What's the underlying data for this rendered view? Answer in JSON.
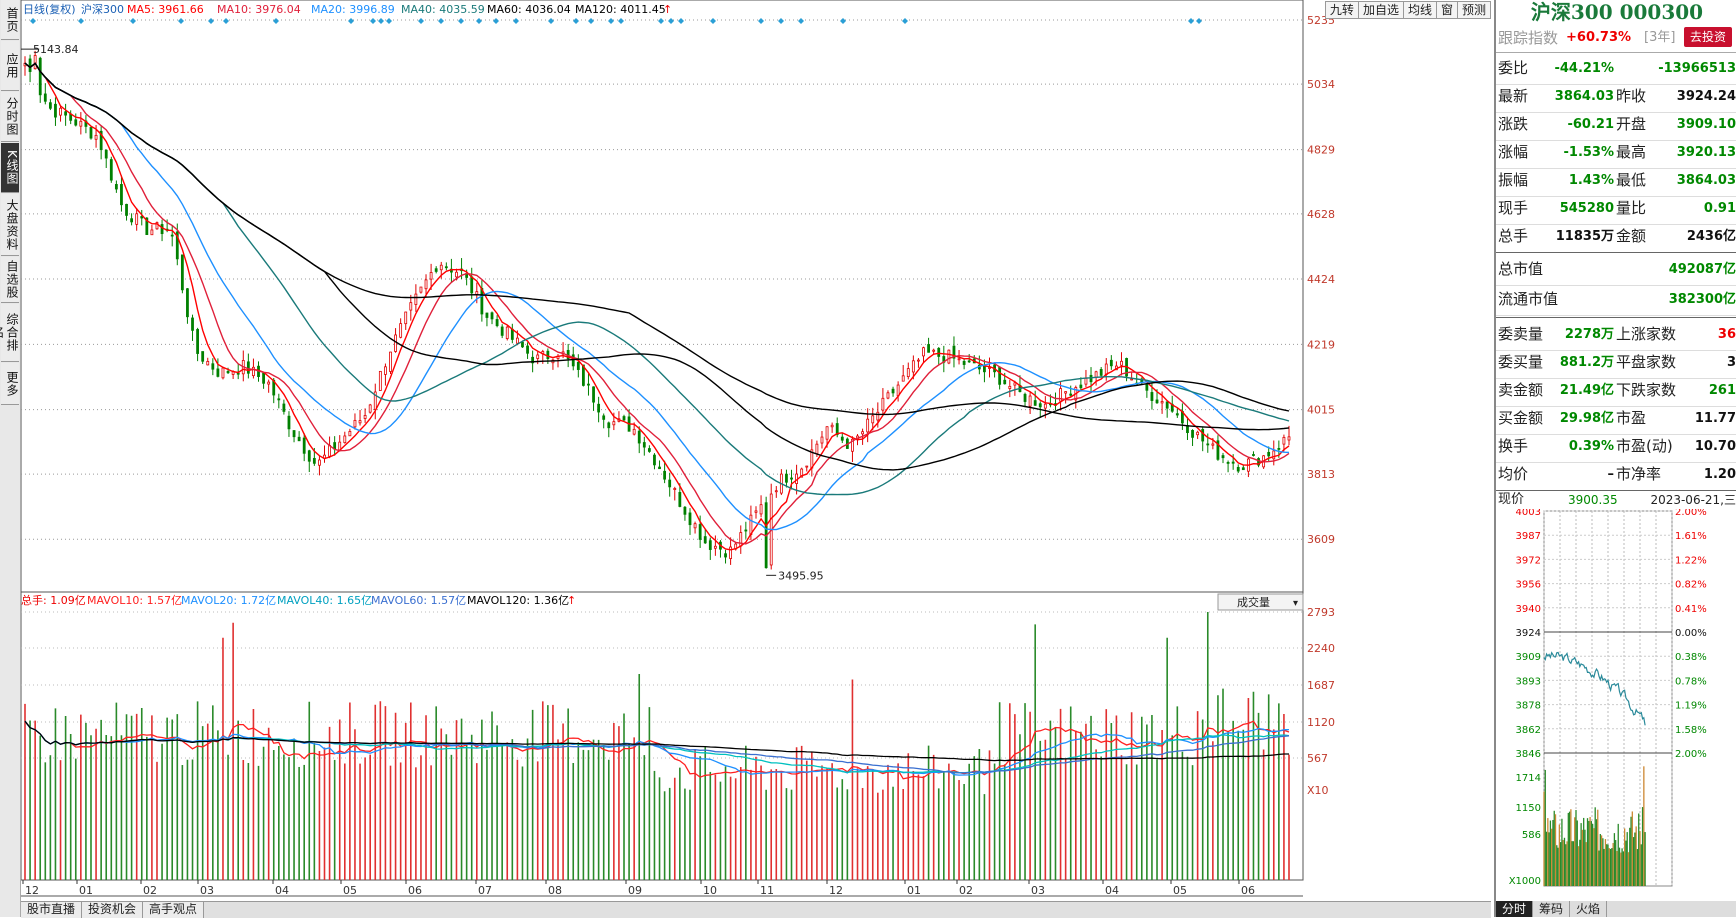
{
  "left_tabs": [
    {
      "label": "首页",
      "active": false
    },
    {
      "label": "应用",
      "active": false
    },
    {
      "label": "分时图",
      "active": false
    },
    {
      "label": "K线图",
      "active": true
    },
    {
      "label": "大盘资料",
      "active": false
    },
    {
      "label": "自选股",
      "active": false
    },
    {
      "label": "综合排名",
      "active": false
    },
    {
      "label": "更多",
      "active": false
    }
  ],
  "chart_header": {
    "period": "日线(复权)",
    "name": "沪深300",
    "ma5": "MA5: 3961.66",
    "ma10": "MA10: 3976.04",
    "ma20": "MA20: 3996.89",
    "ma40": "MA40: 4035.59",
    "ma60": "MA60: 4036.04",
    "ma120": "MA120: 4011.45",
    "arrow": "↑"
  },
  "toolbar": [
    "九转",
    "加自选",
    "均线",
    "窗",
    "预测"
  ],
  "vol_header": {
    "total": "总手: 1.09亿",
    "mavol10": "MAVOL10: 1.57亿",
    "mavol20": "MAVOL20: 1.72亿",
    "mavol40": "MAVOL40: 1.65亿",
    "mavol60": "MAVOL60: 1.57亿",
    "mavol120": "MAVOL120: 1.36亿",
    "arrow": "↑",
    "selector": "成交量"
  },
  "price_axis": [
    "5235",
    "5034",
    "4829",
    "4628",
    "4424",
    "4219",
    "4015",
    "3813",
    "3609"
  ],
  "vol_axis": [
    "2793",
    "2240",
    "1687",
    "1120",
    "567",
    "X10"
  ],
  "month_labels": [
    "12",
    "01",
    "02",
    "03",
    "04",
    "05",
    "06",
    "07",
    "08",
    "09",
    "10",
    "11",
    "12",
    "01",
    "02",
    "03",
    "04",
    "05",
    "06"
  ],
  "annotations": {
    "high": "5143.84",
    "low": "3495.95"
  },
  "bottom_tabs": [
    "股市直播",
    "投资机会",
    "高手观点"
  ],
  "colors": {
    "up": "#e00000",
    "down": "#008000",
    "ma5": "#ff0000",
    "ma10": "#e0203a",
    "ma20": "#1e90ff",
    "ma40": "#1a7a7a",
    "ma60": "#000000",
    "ma120": "#000000"
  },
  "chart_data": {
    "type": "candlestick",
    "title": "沪深300 日线(复权)",
    "ylim": [
      3450,
      5235
    ],
    "high": 5143.84,
    "low": 3495.95,
    "close_path": [
      [
        "12",
        5100
      ],
      [
        "12",
        4960
      ],
      [
        "01",
        4920
      ],
      [
        "01",
        4870
      ],
      [
        "02",
        4650
      ],
      [
        "02",
        4580
      ],
      [
        "03",
        4580
      ],
      [
        "03",
        4200
      ],
      [
        "03",
        4130
      ],
      [
        "04",
        4150
      ],
      [
        "04",
        4100
      ],
      [
        "04",
        3950
      ],
      [
        "05",
        3840
      ],
      [
        "05",
        3920
      ],
      [
        "05",
        4000
      ],
      [
        "06",
        4200
      ],
      [
        "06",
        4350
      ],
      [
        "07",
        4480
      ],
      [
        "07",
        4440
      ],
      [
        "07",
        4310
      ],
      [
        "08",
        4240
      ],
      [
        "08",
        4170
      ],
      [
        "08",
        4200
      ],
      [
        "09",
        4100
      ],
      [
        "09",
        3980
      ],
      [
        "09",
        3960
      ],
      [
        "10",
        3850
      ],
      [
        "10",
        3720
      ],
      [
        "10",
        3600
      ],
      [
        "11",
        3570
      ],
      [
        "11",
        3680
      ],
      [
        "11",
        3790
      ],
      [
        "12",
        3840
      ],
      [
        "12",
        3960
      ],
      [
        "12",
        3900
      ],
      [
        "01",
        4000
      ],
      [
        "01",
        4100
      ],
      [
        "01",
        4190
      ],
      [
        "02",
        4180
      ],
      [
        "02",
        4150
      ],
      [
        "02",
        4120
      ],
      [
        "03",
        4060
      ],
      [
        "03",
        4030
      ],
      [
        "03",
        4080
      ],
      [
        "04",
        4120
      ],
      [
        "04",
        4160
      ],
      [
        "04",
        4080
      ],
      [
        "05",
        4030
      ],
      [
        "05",
        3950
      ],
      [
        "05",
        3880
      ],
      [
        "06",
        3840
      ],
      [
        "06",
        3870
      ],
      [
        "06",
        3930
      ]
    ]
  },
  "right_panel": {
    "title": "沪深300 000300",
    "track_label": "跟踪指数",
    "track_value": "+60.73%",
    "track_period": "[3年]",
    "invest_btn": "去投资",
    "rows": [
      {
        "k1": "委比",
        "v1": "-44.21%",
        "c1": "green",
        "k2": "",
        "v2": "-13966513",
        "c2": "green"
      },
      {
        "k1": "最新",
        "v1": "3864.03",
        "c1": "green",
        "k2": "昨收",
        "v2": "3924.24",
        "c2": "black"
      },
      {
        "k1": "涨跌",
        "v1": "-60.21",
        "c1": "green",
        "k2": "开盘",
        "v2": "3909.10",
        "c2": "green"
      },
      {
        "k1": "涨幅",
        "v1": "-1.53%",
        "c1": "green",
        "k2": "最高",
        "v2": "3920.13",
        "c2": "green"
      },
      {
        "k1": "振幅",
        "v1": "1.43%",
        "c1": "green",
        "k2": "最低",
        "v2": "3864.03",
        "c2": "green"
      },
      {
        "k1": "现手",
        "v1": "545280",
        "c1": "green",
        "k2": "量比",
        "v2": "0.91",
        "c2": "green"
      },
      {
        "k1": "总手",
        "v1": "11835万",
        "c1": "black",
        "k2": "金额",
        "v2": "2436亿",
        "c2": "black"
      }
    ],
    "cap_rows": [
      {
        "k": "总市值",
        "v": "492087亿"
      },
      {
        "k": "流通市值",
        "v": "382300亿"
      }
    ],
    "stat_rows": [
      {
        "k1": "委卖量",
        "v1": "2278万",
        "c1": "green",
        "k2": "上涨家数",
        "v2": "36",
        "c2": "red"
      },
      {
        "k1": "委买量",
        "v1": "881.2万",
        "c1": "green",
        "k2": "平盘家数",
        "v2": "3",
        "c2": "black"
      },
      {
        "k1": "卖金额",
        "v1": "21.49亿",
        "c1": "green",
        "k2": "下跌家数",
        "v2": "261",
        "c2": "green"
      },
      {
        "k1": "买金额",
        "v1": "29.98亿",
        "c1": "green",
        "k2": "市盈",
        "v2": "11.77",
        "c2": "black"
      },
      {
        "k1": "换手",
        "v1": "0.39%",
        "c1": "green",
        "k2": "市盈(动)",
        "v2": "10.70",
        "c2": "black"
      },
      {
        "k1": "均价",
        "v1": "–",
        "c1": "black",
        "k2": "市净率",
        "v2": "1.20",
        "c2": "black"
      }
    ],
    "mini": {
      "label": "现价",
      "price": "3900.35",
      "date": "2023-06-21,三",
      "left_axis": [
        "4003",
        "3987",
        "3972",
        "3956",
        "3940",
        "3924",
        "3909",
        "3893",
        "3878",
        "3862",
        "3846"
      ],
      "right_axis": [
        "2.00%",
        "1.61%",
        "1.22%",
        "0.82%",
        "0.41%",
        "0.00%",
        "0.38%",
        "0.78%",
        "1.19%",
        "1.58%",
        "2.00%"
      ],
      "vol_axis": [
        "1714",
        "1150",
        "586",
        "X1000"
      ]
    },
    "bottom_tabs": [
      "分时",
      "筹码",
      "火焰"
    ]
  }
}
